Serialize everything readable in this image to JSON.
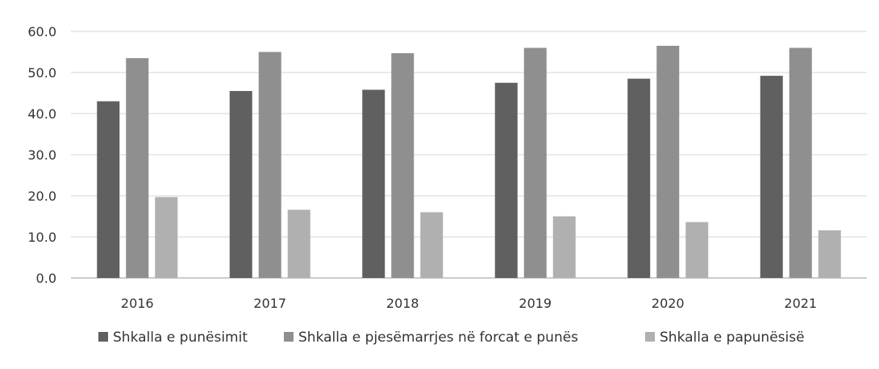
{
  "chart_data": {
    "type": "bar",
    "title": "",
    "xlabel": "",
    "ylabel": "",
    "categories": [
      "2016",
      "2017",
      "2018",
      "2019",
      "2020",
      "2021"
    ],
    "ylim": [
      0,
      60
    ],
    "yticks": [
      0,
      10,
      20,
      30,
      40,
      50,
      60
    ],
    "ytick_labels": [
      "0.0",
      "10.0",
      "20.0",
      "30.0",
      "40.0",
      "50.0",
      "60.0"
    ],
    "grid": true,
    "legend_position": "bottom",
    "series": [
      {
        "name": "Shkalla e punësimit",
        "color": "#606060",
        "values": [
          43.0,
          45.5,
          45.8,
          47.5,
          48.5,
          49.2
        ]
      },
      {
        "name": "Shkalla e pjesëmarrjes në forcat e punës",
        "color": "#8f8f8f",
        "values": [
          53.5,
          55.0,
          54.7,
          56.0,
          56.5,
          56.0
        ]
      },
      {
        "name": "Shkalla e papunësisë",
        "color": "#b0b0b0",
        "values": [
          19.7,
          16.6,
          16.0,
          15.0,
          13.6,
          11.6
        ]
      }
    ]
  }
}
